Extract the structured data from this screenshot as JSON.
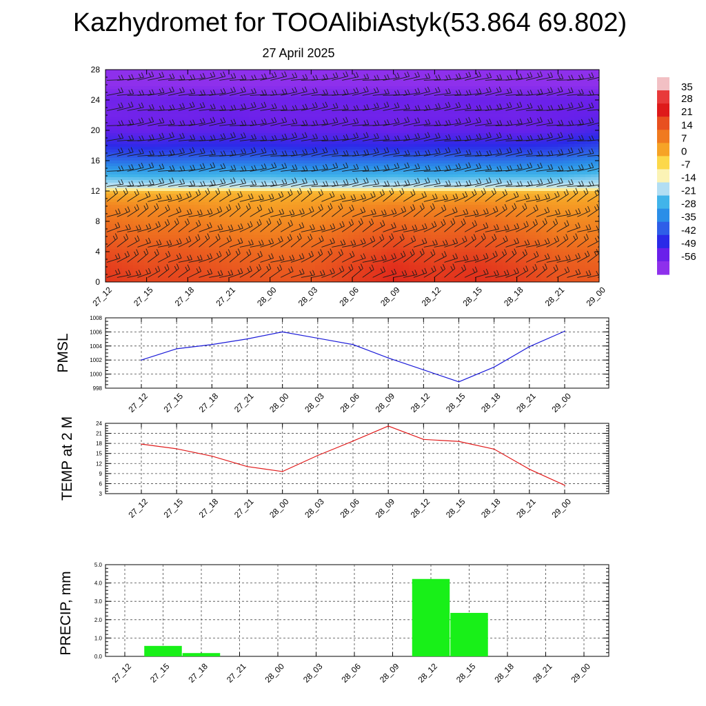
{
  "title": "Kazhydromet for TOOAlibiAstyk(53.864 69.802)",
  "subtitle": "27 April 2025",
  "time_labels": [
    "27_12",
    "27_15",
    "27_18",
    "27_21",
    "28_00",
    "28_03",
    "28_06",
    "28_09",
    "28_12",
    "28_15",
    "28_18",
    "28_21",
    "29_00"
  ],
  "chart_data": [
    {
      "type": "heatmap",
      "description_id": "height-time temperature cross-section with wind barbs",
      "x": [
        "27_12",
        "27_15",
        "27_18",
        "27_21",
        "28_00",
        "28_03",
        "28_06",
        "28_09",
        "28_12",
        "28_15",
        "28_18",
        "28_21",
        "29_00"
      ],
      "y_ticks": [
        0,
        4,
        8,
        12,
        16,
        20,
        24,
        28
      ],
      "ylim": [
        0,
        28
      ],
      "colorbar": {
        "labels": [
          "35",
          "28",
          "21",
          "14",
          "7",
          "0",
          "-7",
          "-14",
          "-21",
          "-28",
          "-35",
          "-42",
          "-49",
          "-56"
        ],
        "colors": [
          "#f2c0c4",
          "#e83a3a",
          "#de1a1a",
          "#e8501f",
          "#f07a1f",
          "#f6a326",
          "#fcd84a",
          "#fbf3b5",
          "#b2def3",
          "#41b4ea",
          "#2a8ee8",
          "#2e5ee8",
          "#2a2ae8",
          "#6a20ea",
          "#8e30ec"
        ]
      },
      "rows": [
        {
          "level": 0,
          "values": [
            20,
            18,
            18,
            17,
            16,
            16,
            19,
            22,
            20,
            21,
            19,
            16,
            15
          ]
        },
        {
          "level": 2,
          "values": [
            19,
            17,
            17,
            15,
            14,
            15,
            18,
            21,
            19,
            20,
            18,
            15,
            14
          ]
        },
        {
          "level": 4,
          "values": [
            17,
            15,
            15,
            13,
            12,
            13,
            16,
            19,
            17,
            18,
            16,
            13,
            12
          ]
        },
        {
          "level": 6,
          "values": [
            14,
            12,
            12,
            10,
            9,
            10,
            13,
            16,
            14,
            15,
            13,
            10,
            9
          ]
        },
        {
          "level": 8,
          "values": [
            11,
            9,
            9,
            7,
            6,
            7,
            10,
            12,
            11,
            12,
            10,
            7,
            7
          ]
        },
        {
          "level": 10,
          "values": [
            8,
            6,
            6,
            4,
            3,
            4,
            6,
            8,
            7,
            8,
            6,
            4,
            4
          ]
        },
        {
          "level": 11.8,
          "values": [
            0,
            0,
            0,
            0,
            0,
            0,
            0,
            0,
            0,
            0,
            0,
            0,
            0
          ]
        },
        {
          "level": 12.4,
          "values": [
            -16,
            -16,
            -16,
            -16,
            -16,
            -16,
            -16,
            -16,
            -16,
            -16,
            -16,
            -16,
            -16
          ]
        },
        {
          "level": 14,
          "values": [
            -26,
            -27,
            -27,
            -26,
            -26,
            -27,
            -27,
            -26,
            -27,
            -26,
            -26,
            -26,
            -24
          ]
        },
        {
          "level": 16,
          "values": [
            -38,
            -39,
            -38,
            -38,
            -38,
            -39,
            -38,
            -38,
            -38,
            -38,
            -38,
            -37,
            -34
          ]
        },
        {
          "level": 18,
          "values": [
            -48,
            -49,
            -48,
            -48,
            -48,
            -49,
            -48,
            -49,
            -48,
            -48,
            -48,
            -47,
            -44
          ]
        },
        {
          "level": 20,
          "values": [
            -54,
            -55,
            -54,
            -53,
            -54,
            -54,
            -54,
            -55,
            -54,
            -54,
            -55,
            -54,
            -51
          ]
        },
        {
          "level": 22,
          "values": [
            -57,
            -56,
            -56,
            -55,
            -56,
            -56,
            -56,
            -56,
            -56,
            -56,
            -56,
            -55,
            -54
          ]
        },
        {
          "level": 24,
          "values": [
            -56,
            -56,
            -55,
            -55,
            -56,
            -55,
            -55,
            -55,
            -56,
            -55,
            -56,
            -55,
            -55
          ]
        },
        {
          "level": 26,
          "values": [
            -62,
            -62,
            -62,
            -62,
            -62,
            -62,
            -62,
            -62,
            -62,
            -62,
            -62,
            -62,
            -62
          ]
        },
        {
          "level": 28,
          "values": [
            -65,
            -65,
            -65,
            -65,
            -65,
            -65,
            -65,
            -65,
            -65,
            -65,
            -65,
            -65,
            -65
          ]
        }
      ]
    },
    {
      "type": "line",
      "ylabel": "PMSL",
      "x": [
        "27_12",
        "27_15",
        "27_18",
        "27_21",
        "28_00",
        "28_03",
        "28_06",
        "28_09",
        "28_12",
        "28_15",
        "28_18",
        "28_21",
        "29_00"
      ],
      "values": [
        1002.0,
        1003.6,
        1004.2,
        1005.0,
        1006.0,
        1005.1,
        1004.2,
        1002.3,
        1000.6,
        998.9,
        1001.0,
        1003.9,
        1006.1
      ],
      "ylim": [
        998,
        1008
      ],
      "y_ticks": [
        "998",
        "1000",
        "1002",
        "1004",
        "1006",
        "1008"
      ],
      "color": "#1a1ad8",
      "grid": true
    },
    {
      "type": "line",
      "ylabel": "TEMP at 2 M",
      "x": [
        "27_12",
        "27_15",
        "27_18",
        "27_21",
        "28_00",
        "28_03",
        "28_06",
        "28_09",
        "28_12",
        "28_15",
        "28_18",
        "28_21",
        "29_00"
      ],
      "values": [
        17.8,
        16.4,
        14.2,
        11.1,
        9.6,
        14.4,
        18.7,
        23.2,
        19.2,
        18.6,
        16.3,
        10.3,
        5.5
      ],
      "ylim": [
        3,
        24
      ],
      "y_ticks": [
        "3",
        "6",
        "9",
        "12",
        "15",
        "18",
        "21",
        "24"
      ],
      "color": "#e01a1a",
      "grid": true
    },
    {
      "type": "bar",
      "ylabel": "PRECIP, mm",
      "categories": [
        "27_12",
        "27_15",
        "27_18",
        "27_21",
        "28_00",
        "28_03",
        "28_06",
        "28_09",
        "28_12",
        "28_15",
        "28_18",
        "28_21",
        "29_00"
      ],
      "values": [
        0,
        0.57,
        0.18,
        0,
        0,
        0,
        0,
        0,
        4.22,
        2.37,
        0,
        0,
        0
      ],
      "ylim": [
        0,
        5
      ],
      "y_ticks": [
        "0.0",
        "1.0",
        "2.0",
        "3.0",
        "4.0",
        "5.0"
      ],
      "color": "#18f018",
      "grid": true
    }
  ]
}
